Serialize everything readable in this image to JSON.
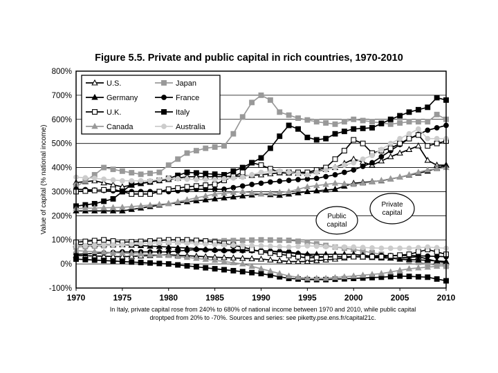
{
  "chart_data": {
    "type": "line",
    "title": "Figure 5.5. Private and public capital in rich countries, 1970-2010",
    "ylabel": "Value of capital (% national income)",
    "xlabel": "",
    "xlim": [
      1970,
      2010
    ],
    "ylim": [
      -100,
      800
    ],
    "x_ticks": [
      "1970",
      "1975",
      "1980",
      "1985",
      "1990",
      "1995",
      "2000",
      "2005",
      "2010"
    ],
    "y_ticks": [
      "-100%",
      "0%",
      "100%",
      "200%",
      "300%",
      "400%",
      "500%",
      "600%",
      "700%",
      "800%"
    ],
    "grid": true,
    "legend_position": "top-left",
    "annotations": [
      {
        "text_lines": [
          "Public",
          "capital"
        ],
        "target_x": 1992,
        "target_y": 80
      },
      {
        "text_lines": [
          "Private",
          "capital"
        ],
        "target_x": 2004,
        "target_y": 340
      }
    ],
    "caption_lines": [
      "In Italy, private capital rose from 240% to 680% of national income between 1970 and 2010, while public capital",
      "droptped from 20% to -70%. Sources and series:  see piketty.pse.ens.fr/capital21c."
    ],
    "series": [
      {
        "name": "U.S.",
        "color": "#000000",
        "marker": "triangle-open",
        "private": [
          [
            1970,
            338
          ],
          [
            1972,
            345
          ],
          [
            1975,
            320
          ],
          [
            1978,
            340
          ],
          [
            1980,
            350
          ],
          [
            1982,
            362
          ],
          [
            1985,
            362
          ],
          [
            1988,
            365
          ],
          [
            1990,
            370
          ],
          [
            1992,
            378
          ],
          [
            1995,
            375
          ],
          [
            1998,
            400
          ],
          [
            2000,
            435
          ],
          [
            2002,
            410
          ],
          [
            2004,
            445
          ],
          [
            2006,
            475
          ],
          [
            2007,
            490
          ],
          [
            2008,
            430
          ],
          [
            2009,
            410
          ],
          [
            2010,
            410
          ]
        ],
        "public": [
          [
            1970,
            35
          ],
          [
            1975,
            30
          ],
          [
            1980,
            38
          ],
          [
            1985,
            28
          ],
          [
            1990,
            20
          ],
          [
            1993,
            10
          ],
          [
            1995,
            10
          ],
          [
            1998,
            20
          ],
          [
            2000,
            30
          ],
          [
            2003,
            25
          ],
          [
            2005,
            25
          ],
          [
            2007,
            30
          ],
          [
            2009,
            10
          ],
          [
            2010,
            5
          ]
        ]
      },
      {
        "name": "Japan",
        "color": "#999999",
        "marker": "square-filled",
        "private": [
          [
            1970,
            320
          ],
          [
            1972,
            370
          ],
          [
            1973,
            400
          ],
          [
            1975,
            385
          ],
          [
            1977,
            372
          ],
          [
            1979,
            380
          ],
          [
            1980,
            410
          ],
          [
            1982,
            460
          ],
          [
            1984,
            480
          ],
          [
            1986,
            490
          ],
          [
            1987,
            540
          ],
          [
            1988,
            610
          ],
          [
            1989,
            670
          ],
          [
            1990,
            700
          ],
          [
            1991,
            680
          ],
          [
            1992,
            630
          ],
          [
            1994,
            605
          ],
          [
            1996,
            590
          ],
          [
            1998,
            580
          ],
          [
            2000,
            600
          ],
          [
            2002,
            590
          ],
          [
            2004,
            580
          ],
          [
            2006,
            590
          ],
          [
            2008,
            590
          ],
          [
            2009,
            620
          ],
          [
            2010,
            600
          ]
        ],
        "public": [
          [
            1970,
            70
          ],
          [
            1975,
            80
          ],
          [
            1980,
            90
          ],
          [
            1985,
            95
          ],
          [
            1990,
            100
          ],
          [
            1993,
            98
          ],
          [
            1995,
            90
          ],
          [
            1998,
            70
          ],
          [
            2000,
            60
          ],
          [
            2003,
            40
          ],
          [
            2005,
            20
          ],
          [
            2008,
            0
          ],
          [
            2010,
            -10
          ]
        ]
      },
      {
        "name": "Germany",
        "color": "#000000",
        "marker": "triangle-filled",
        "private": [
          [
            1970,
            220
          ],
          [
            1975,
            220
          ],
          [
            1980,
            250
          ],
          [
            1985,
            270
          ],
          [
            1990,
            290
          ],
          [
            1992,
            285
          ],
          [
            1995,
            300
          ],
          [
            1998,
            310
          ],
          [
            2000,
            335
          ],
          [
            2003,
            345
          ],
          [
            2005,
            360
          ],
          [
            2008,
            385
          ],
          [
            2010,
            410
          ]
        ],
        "public": [
          [
            1970,
            80
          ],
          [
            1975,
            80
          ],
          [
            1980,
            70
          ],
          [
            1985,
            60
          ],
          [
            1990,
            55
          ],
          [
            1995,
            40
          ],
          [
            2000,
            40
          ],
          [
            2005,
            20
          ],
          [
            2008,
            15
          ],
          [
            2010,
            10
          ]
        ]
      },
      {
        "name": "France",
        "color": "#000000",
        "marker": "circle-filled",
        "private": [
          [
            1970,
            310
          ],
          [
            1973,
            305
          ],
          [
            1976,
            300
          ],
          [
            1980,
            300
          ],
          [
            1983,
            310
          ],
          [
            1986,
            310
          ],
          [
            1989,
            330
          ],
          [
            1991,
            340
          ],
          [
            1994,
            350
          ],
          [
            1996,
            355
          ],
          [
            1998,
            370
          ],
          [
            2000,
            390
          ],
          [
            2002,
            420
          ],
          [
            2004,
            470
          ],
          [
            2006,
            520
          ],
          [
            2008,
            555
          ],
          [
            2010,
            575
          ]
        ],
        "public": [
          [
            1970,
            40
          ],
          [
            1975,
            50
          ],
          [
            1980,
            50
          ],
          [
            1983,
            60
          ],
          [
            1986,
            55
          ],
          [
            1990,
            55
          ],
          [
            1993,
            50
          ],
          [
            1996,
            30
          ],
          [
            2000,
            30
          ],
          [
            2003,
            35
          ],
          [
            2006,
            35
          ],
          [
            2010,
            30
          ]
        ]
      },
      {
        "name": "U.K.",
        "color": "#000000",
        "marker": "square-open",
        "private": [
          [
            1970,
            300
          ],
          [
            1972,
            305
          ],
          [
            1974,
            310
          ],
          [
            1976,
            290
          ],
          [
            1978,
            290
          ],
          [
            1980,
            310
          ],
          [
            1982,
            320
          ],
          [
            1985,
            330
          ],
          [
            1988,
            380
          ],
          [
            1989,
            420
          ],
          [
            1990,
            410
          ],
          [
            1992,
            380
          ],
          [
            1995,
            380
          ],
          [
            1997,
            400
          ],
          [
            1999,
            470
          ],
          [
            2000,
            515
          ],
          [
            2001,
            500
          ],
          [
            2002,
            460
          ],
          [
            2004,
            480
          ],
          [
            2006,
            520
          ],
          [
            2007,
            535
          ],
          [
            2008,
            490
          ],
          [
            2010,
            510
          ]
        ],
        "public": [
          [
            1970,
            90
          ],
          [
            1973,
            100
          ],
          [
            1975,
            90
          ],
          [
            1978,
            95
          ],
          [
            1980,
            100
          ],
          [
            1982,
            100
          ],
          [
            1984,
            95
          ],
          [
            1986,
            85
          ],
          [
            1988,
            70
          ],
          [
            1990,
            50
          ],
          [
            1992,
            40
          ],
          [
            1995,
            25
          ],
          [
            1998,
            30
          ],
          [
            2000,
            30
          ],
          [
            2003,
            30
          ],
          [
            2006,
            40
          ],
          [
            2008,
            60
          ],
          [
            2010,
            40
          ]
        ]
      },
      {
        "name": "Italy",
        "color": "#000000",
        "marker": "square-filled",
        "private": [
          [
            1970,
            240
          ],
          [
            1972,
            250
          ],
          [
            1974,
            270
          ],
          [
            1976,
            330
          ],
          [
            1978,
            340
          ],
          [
            1980,
            355
          ],
          [
            1982,
            380
          ],
          [
            1984,
            375
          ],
          [
            1986,
            370
          ],
          [
            1988,
            400
          ],
          [
            1990,
            440
          ],
          [
            1991,
            480
          ],
          [
            1992,
            530
          ],
          [
            1993,
            575
          ],
          [
            1994,
            560
          ],
          [
            1995,
            525
          ],
          [
            1996,
            515
          ],
          [
            1997,
            520
          ],
          [
            1998,
            540
          ],
          [
            2000,
            560
          ],
          [
            2002,
            565
          ],
          [
            2004,
            600
          ],
          [
            2006,
            630
          ],
          [
            2008,
            650
          ],
          [
            2009,
            690
          ],
          [
            2010,
            680
          ]
        ],
        "public": [
          [
            1970,
            20
          ],
          [
            1975,
            10
          ],
          [
            1980,
            0
          ],
          [
            1985,
            -20
          ],
          [
            1990,
            -40
          ],
          [
            1993,
            -60
          ],
          [
            1995,
            -65
          ],
          [
            1997,
            -65
          ],
          [
            2000,
            -60
          ],
          [
            2003,
            -55
          ],
          [
            2005,
            -50
          ],
          [
            2008,
            -55
          ],
          [
            2010,
            -70
          ]
        ]
      },
      {
        "name": "Canada",
        "color": "#999999",
        "marker": "triangle-filled",
        "private": [
          [
            1970,
            230
          ],
          [
            1975,
            235
          ],
          [
            1980,
            250
          ],
          [
            1985,
            290
          ],
          [
            1988,
            300
          ],
          [
            1990,
            290
          ],
          [
            1993,
            300
          ],
          [
            1995,
            320
          ],
          [
            1998,
            335
          ],
          [
            2000,
            330
          ],
          [
            2002,
            340
          ],
          [
            2005,
            360
          ],
          [
            2008,
            390
          ],
          [
            2010,
            400
          ]
        ],
        "public": [
          [
            1970,
            55
          ],
          [
            1975,
            45
          ],
          [
            1980,
            35
          ],
          [
            1985,
            15
          ],
          [
            1988,
            0
          ],
          [
            1990,
            -20
          ],
          [
            1993,
            -50
          ],
          [
            1995,
            -60
          ],
          [
            1997,
            -60
          ],
          [
            2000,
            -50
          ],
          [
            2003,
            -40
          ],
          [
            2006,
            -20
          ],
          [
            2009,
            -10
          ],
          [
            2010,
            -5
          ]
        ]
      },
      {
        "name": "Australia",
        "color": "#cccccc",
        "marker": "circle-filled",
        "private": [
          [
            1970,
            360
          ],
          [
            1972,
            355
          ],
          [
            1975,
            345
          ],
          [
            1978,
            345
          ],
          [
            1980,
            355
          ],
          [
            1983,
            350
          ],
          [
            1985,
            350
          ],
          [
            1988,
            360
          ],
          [
            1990,
            380
          ],
          [
            1992,
            385
          ],
          [
            1995,
            370
          ],
          [
            1998,
            400
          ],
          [
            2000,
            420
          ],
          [
            2002,
            450
          ],
          [
            2004,
            500
          ],
          [
            2006,
            540
          ],
          [
            2007,
            560
          ],
          [
            2008,
            520
          ],
          [
            2010,
            520
          ]
        ],
        "public": [
          [
            1970,
            75
          ],
          [
            1975,
            80
          ],
          [
            1980,
            90
          ],
          [
            1985,
            80
          ],
          [
            1990,
            75
          ],
          [
            1993,
            70
          ],
          [
            1995,
            75
          ],
          [
            1998,
            70
          ],
          [
            2000,
            70
          ],
          [
            2003,
            65
          ],
          [
            2006,
            65
          ],
          [
            2008,
            70
          ],
          [
            2010,
            65
          ]
        ]
      }
    ]
  }
}
